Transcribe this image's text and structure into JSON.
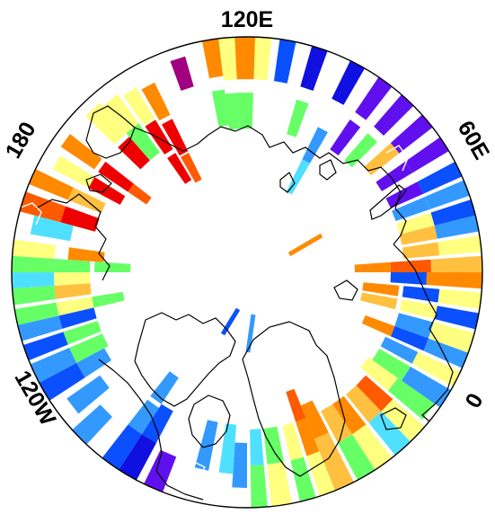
{
  "map": {
    "projection": "north-polar-stereographic",
    "longitude_labels": {
      "east_120": "120E",
      "east_60": "60E",
      "zero": "0",
      "west_120": "120W",
      "dateline": "180"
    }
  },
  "palette": {
    "magenta": "#a0007f",
    "red": "#ee0000",
    "orange_red": "#ff5a00",
    "orange": "#ff8a00",
    "light_orange": "#ffc040",
    "yellow": "#ffff80",
    "green": "#66ff66",
    "cyan": "#50e0ff",
    "sky_blue": "#3399ff",
    "blue": "#0a50ff",
    "deep_blue": "#1010e0",
    "violet": "#6010ee",
    "white": "#ffffff"
  }
}
